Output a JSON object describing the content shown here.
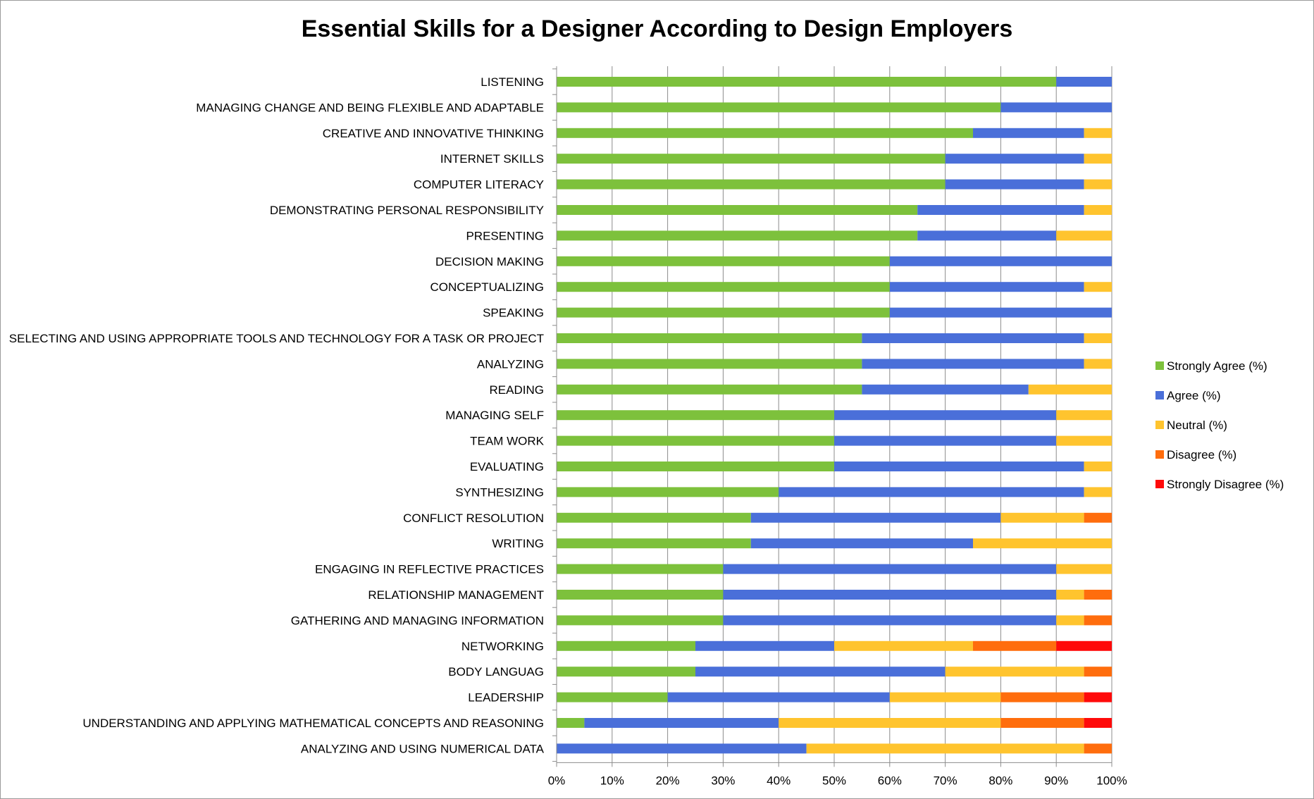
{
  "chart_data": {
    "type": "bar",
    "orientation": "horizontal",
    "stacked": true,
    "title": "Essential Skills for a Designer According to Design Employers",
    "xlabel": "",
    "ylabel": "",
    "xlim": [
      0,
      100
    ],
    "x_ticks": [
      "0%",
      "10%",
      "20%",
      "30%",
      "40%",
      "50%",
      "60%",
      "70%",
      "80%",
      "90%",
      "100%"
    ],
    "grid": "vertical",
    "legend_position": "right",
    "categories": [
      "LISTENING",
      "MANAGING CHANGE AND BEING FLEXIBLE AND ADAPTABLE",
      "CREATIVE AND INNOVATIVE THINKING",
      "INTERNET SKILLS",
      "COMPUTER LITERACY",
      "DEMONSTRATING PERSONAL RESPONSIBILITY",
      "PRESENTING",
      "DECISION MAKING",
      "CONCEPTUALIZING",
      "SPEAKING",
      "SELECTING AND USING APPROPRIATE TOOLS AND TECHNOLOGY FOR A TASK OR PROJECT",
      "ANALYZING",
      "READING",
      "MANAGING SELF",
      "TEAM WORK",
      "EVALUATING",
      "SYNTHESIZING",
      "CONFLICT RESOLUTION",
      "WRITING",
      "ENGAGING IN REFLECTIVE PRACTICES",
      "RELATIONSHIP MANAGEMENT",
      "GATHERING AND MANAGING INFORMATION",
      "NETWORKING",
      "BODY LANGUAG",
      "LEADERSHIP",
      "UNDERSTANDING AND APPLYING MATHEMATICAL CONCEPTS AND REASONING",
      "ANALYZING AND USING NUMERICAL DATA"
    ],
    "series": [
      {
        "name": "Strongly Agree (%)",
        "color": "#7dc13c",
        "values": [
          90,
          80,
          75,
          70,
          70,
          65,
          65,
          60,
          60,
          60,
          55,
          55,
          55,
          50,
          50,
          50,
          40,
          35,
          35,
          30,
          30,
          30,
          25,
          25,
          20,
          5,
          0
        ]
      },
      {
        "name": "Agree (%)",
        "color": "#4a6fd9",
        "values": [
          10,
          20,
          20,
          25,
          25,
          30,
          25,
          40,
          35,
          40,
          40,
          40,
          30,
          40,
          40,
          45,
          55,
          45,
          40,
          60,
          60,
          60,
          25,
          45,
          40,
          35,
          45
        ]
      },
      {
        "name": "Neutral (%)",
        "color": "#ffc42e",
        "values": [
          0,
          0,
          5,
          5,
          5,
          5,
          10,
          0,
          5,
          0,
          5,
          5,
          15,
          10,
          10,
          5,
          5,
          15,
          25,
          10,
          5,
          5,
          25,
          25,
          20,
          40,
          50
        ]
      },
      {
        "name": "Disagree (%)",
        "color": "#ff6d0d",
        "values": [
          0,
          0,
          0,
          0,
          0,
          0,
          0,
          0,
          0,
          0,
          0,
          0,
          0,
          0,
          0,
          0,
          0,
          5,
          0,
          0,
          5,
          5,
          15,
          5,
          15,
          15,
          5
        ]
      },
      {
        "name": "Strongly Disagree (%)",
        "color": "#ff0a0a",
        "values": [
          0,
          0,
          0,
          0,
          0,
          0,
          0,
          0,
          0,
          0,
          0,
          0,
          0,
          0,
          0,
          0,
          0,
          0,
          0,
          0,
          0,
          0,
          10,
          0,
          5,
          5,
          0
        ]
      }
    ]
  }
}
